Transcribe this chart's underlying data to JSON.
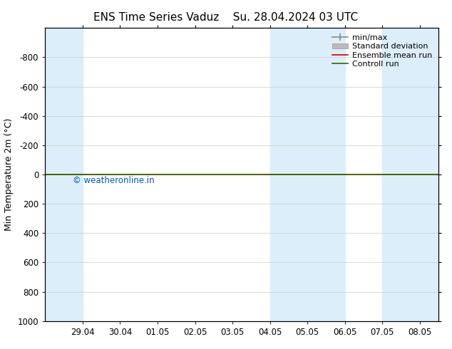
{
  "title_left": "ENS Time Series Vaduz",
  "title_right": "Su. 28.04.2024 03 UTC",
  "ylabel": "Min Temperature 2m (°C)",
  "ylim_top": -1000,
  "ylim_bottom": 1000,
  "yticks": [
    -800,
    -600,
    -400,
    -200,
    0,
    200,
    400,
    600,
    800,
    1000
  ],
  "xtick_labels": [
    "29.04",
    "30.04",
    "01.05",
    "02.05",
    "03.05",
    "04.05",
    "05.05",
    "06.05",
    "07.05",
    "08.05"
  ],
  "xtick_positions": [
    1,
    2,
    3,
    4,
    5,
    6,
    7,
    8,
    9,
    10
  ],
  "xlim": [
    0,
    10.5
  ],
  "shaded_bands": [
    {
      "x_start": 0.0,
      "x_end": 1.0
    },
    {
      "x_start": 6.0,
      "x_end": 7.0
    },
    {
      "x_start": 7.0,
      "x_end": 8.0
    },
    {
      "x_start": 9.0,
      "x_end": 10.5
    }
  ],
  "band_color": "#dceef9",
  "green_line_color": "#336600",
  "red_line_color": "#cc0000",
  "watermark": "© weatheronline.in",
  "watermark_color": "#0055cc",
  "background_color": "#ffffff",
  "legend_labels": [
    "min/max",
    "Standard deviation",
    "Ensemble mean run",
    "Controll run"
  ],
  "legend_colors_line": [
    "#888888",
    "#bbbbbb",
    "#cc0000",
    "#336600"
  ],
  "title_fontsize": 11,
  "axis_label_fontsize": 9,
  "tick_fontsize": 8.5,
  "legend_fontsize": 8
}
